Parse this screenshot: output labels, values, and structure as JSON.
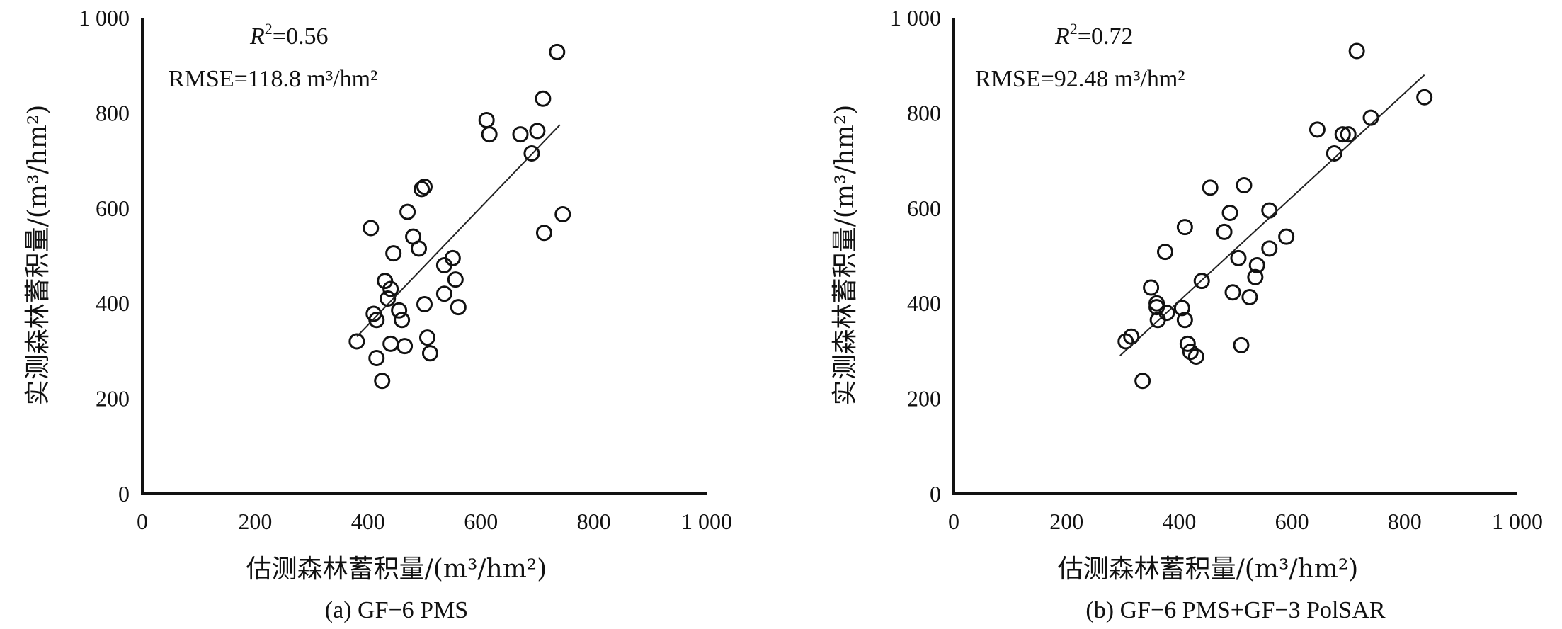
{
  "chart_data": [
    {
      "type": "scatter",
      "caption": "(a) GF−6 PMS",
      "xlabel": "估测森林蓄积量/(m³/hm²)",
      "ylabel": "实测森林蓄积量/(m³/hm²)",
      "r2_label": "R",
      "r2_sup": "2",
      "r2_value": "=0.56",
      "rmse_label": "RMSE=118.8 m³/hm²",
      "xlim": [
        0,
        1000
      ],
      "ylim": [
        0,
        1000
      ],
      "xticks": [
        "0",
        "200",
        "400",
        "600",
        "800",
        "1 000"
      ],
      "yticks": [
        "0",
        "200",
        "400",
        "600",
        "800",
        "1 000"
      ],
      "fit_line": [
        [
          380,
          330
        ],
        [
          740,
          775
        ]
      ],
      "points": [
        [
          380,
          320
        ],
        [
          405,
          558
        ],
        [
          410,
          378
        ],
        [
          415,
          365
        ],
        [
          415,
          285
        ],
        [
          425,
          237
        ],
        [
          430,
          447
        ],
        [
          435,
          410
        ],
        [
          440,
          430
        ],
        [
          440,
          315
        ],
        [
          445,
          505
        ],
        [
          455,
          385
        ],
        [
          460,
          365
        ],
        [
          465,
          310
        ],
        [
          470,
          592
        ],
        [
          480,
          540
        ],
        [
          490,
          515
        ],
        [
          495,
          640
        ],
        [
          500,
          645
        ],
        [
          500,
          398
        ],
        [
          505,
          328
        ],
        [
          510,
          295
        ],
        [
          535,
          480
        ],
        [
          535,
          420
        ],
        [
          550,
          495
        ],
        [
          555,
          450
        ],
        [
          560,
          392
        ],
        [
          610,
          785
        ],
        [
          615,
          755
        ],
        [
          670,
          755
        ],
        [
          690,
          715
        ],
        [
          700,
          762
        ],
        [
          710,
          830
        ],
        [
          712,
          548
        ],
        [
          735,
          928
        ],
        [
          745,
          587
        ]
      ]
    },
    {
      "type": "scatter",
      "caption": "(b) GF−6 PMS+GF−3 PolSAR",
      "xlabel": "估测森林蓄积量/(m³/hm²)",
      "ylabel": "实测森林蓄积量/(m³/hm²)",
      "r2_label": "R",
      "r2_sup": "2",
      "r2_value": "=0.72",
      "rmse_label": "RMSE=92.48 m³/hm²",
      "xlim": [
        0,
        1000
      ],
      "ylim": [
        0,
        1000
      ],
      "xticks": [
        "0",
        "200",
        "400",
        "600",
        "800",
        "1 000"
      ],
      "yticks": [
        "0",
        "200",
        "400",
        "600",
        "800",
        "1 000"
      ],
      "fit_line": [
        [
          295,
          290
        ],
        [
          835,
          880
        ]
      ],
      "points": [
        [
          305,
          320
        ],
        [
          315,
          330
        ],
        [
          335,
          237
        ],
        [
          350,
          433
        ],
        [
          360,
          400
        ],
        [
          360,
          392
        ],
        [
          362,
          365
        ],
        [
          375,
          508
        ],
        [
          378,
          380
        ],
        [
          405,
          390
        ],
        [
          410,
          560
        ],
        [
          410,
          365
        ],
        [
          415,
          315
        ],
        [
          420,
          298
        ],
        [
          430,
          288
        ],
        [
          440,
          447
        ],
        [
          455,
          643
        ],
        [
          480,
          550
        ],
        [
          490,
          590
        ],
        [
          495,
          423
        ],
        [
          505,
          495
        ],
        [
          510,
          312
        ],
        [
          515,
          648
        ],
        [
          525,
          413
        ],
        [
          535,
          455
        ],
        [
          538,
          480
        ],
        [
          560,
          595
        ],
        [
          560,
          515
        ],
        [
          590,
          540
        ],
        [
          645,
          765
        ],
        [
          675,
          715
        ],
        [
          690,
          755
        ],
        [
          700,
          755
        ],
        [
          740,
          790
        ],
        [
          835,
          833
        ],
        [
          715,
          930
        ]
      ]
    }
  ]
}
